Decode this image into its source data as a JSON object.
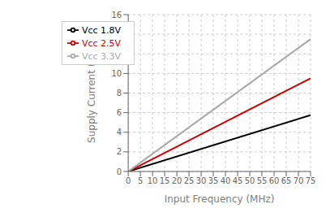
{
  "chart_data": {
    "type": "line",
    "xlabel": "Input Frequency (MHz)",
    "ylabel": "Supply Current (mA)",
    "x": [
      0,
      75
    ],
    "series": [
      {
        "name": "Vcc 1.8V",
        "color": "#000000",
        "values": [
          0.0,
          5.75
        ]
      },
      {
        "name": "Vcc 2.5V",
        "color": "#cc0000",
        "values": [
          0.0,
          9.5
        ]
      },
      {
        "name": "Vcc 3.3V",
        "color": "#aaaaaa",
        "values": [
          0.0,
          13.5
        ]
      }
    ],
    "xlim": [
      0,
      75
    ],
    "ylim": [
      0,
      16
    ],
    "xticks": [
      0,
      5,
      10,
      15,
      20,
      25,
      30,
      35,
      40,
      45,
      50,
      55,
      60,
      65,
      70,
      75
    ],
    "yticks": [
      0,
      2,
      4,
      6,
      8,
      10,
      12,
      14,
      16
    ],
    "grid": true,
    "legend": "upper left"
  }
}
